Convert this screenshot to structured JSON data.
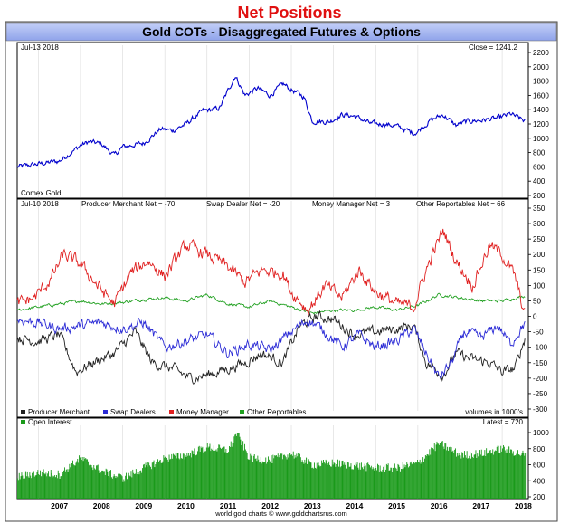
{
  "page_title": "Net Positions",
  "chart_title": "Gold COTs - Disaggregated Futures & Options",
  "footer": "world gold charts © www.goldchartsrus.com",
  "colors": {
    "accent_red": "#e01010",
    "gold": "#0000cc",
    "producer": "#202020",
    "swap": "#2b2bd6",
    "money": "#e02020",
    "other": "#20a020",
    "oi": "#1a9a1a",
    "header_bg": "#a8b8f0"
  },
  "chart_data": [
    {
      "type": "line",
      "name_label": "Comex Gold",
      "date_label": "Jul-13  2018",
      "close_label": "Close = 1241.2",
      "ylim": [
        200,
        2200
      ],
      "yticks": [
        200,
        400,
        600,
        800,
        1000,
        1200,
        1400,
        1600,
        1800,
        2000,
        2200
      ],
      "series": [
        {
          "x": [
            2006.5,
            2007.0,
            2007.5,
            2008.0,
            2008.2,
            2008.5,
            2008.8,
            2009.0,
            2009.5,
            2009.9,
            2010.2,
            2010.5,
            2010.9,
            2011.3,
            2011.67,
            2011.9,
            2012.2,
            2012.5,
            2012.8,
            2013.0,
            2013.3,
            2013.5,
            2013.9,
            2014.2,
            2014.5,
            2014.9,
            2015.2,
            2015.5,
            2015.9,
            2016.0,
            2016.3,
            2016.6,
            2016.9,
            2017.2,
            2017.5,
            2017.9,
            2018.2,
            2018.54
          ],
          "values": [
            600,
            640,
            680,
            900,
            950,
            920,
            760,
            880,
            930,
            1130,
            1110,
            1200,
            1380,
            1420,
            1880,
            1600,
            1700,
            1600,
            1760,
            1680,
            1580,
            1240,
            1230,
            1330,
            1310,
            1200,
            1200,
            1170,
            1070,
            1100,
            1250,
            1330,
            1180,
            1240,
            1250,
            1280,
            1340,
            1241
          ]
        }
      ]
    },
    {
      "type": "line",
      "date_label": "Jul-10  2018",
      "net_labels": [
        "Producer Merchant Net = -70",
        "Swap Dealer Net = -20",
        "Money Manager Net = 3",
        "Other Reportables Net = 66"
      ],
      "ylim": [
        -300,
        350
      ],
      "yticks": [
        -300,
        -250,
        -200,
        -150,
        -100,
        -50,
        0,
        50,
        100,
        150,
        200,
        250,
        300,
        350
      ],
      "units_label": "volumes in 1000's",
      "series": [
        {
          "name": "Producer Merchant",
          "x": [
            2006.5,
            2007.0,
            2007.5,
            2007.9,
            2008.3,
            2008.8,
            2009.3,
            2009.7,
            2010.2,
            2010.6,
            2011.0,
            2011.5,
            2011.9,
            2012.3,
            2012.8,
            2013.2,
            2013.6,
            2014.0,
            2014.5,
            2015.0,
            2015.5,
            2015.9,
            2016.2,
            2016.6,
            2016.9,
            2017.3,
            2017.7,
            2018.0,
            2018.3,
            2018.54
          ],
          "values": [
            -70,
            -80,
            -60,
            -180,
            -150,
            -120,
            -50,
            -150,
            -170,
            -200,
            -190,
            -170,
            -150,
            -120,
            -150,
            -30,
            0,
            -10,
            -60,
            -50,
            -40,
            -30,
            -150,
            -190,
            -120,
            -140,
            -150,
            -180,
            -170,
            -70
          ]
        },
        {
          "name": "Swap Dealers",
          "x": [
            2006.5,
            2007.0,
            2007.5,
            2008.0,
            2008.5,
            2009.0,
            2009.5,
            2010.0,
            2010.5,
            2011.0,
            2011.5,
            2012.0,
            2012.5,
            2013.0,
            2013.4,
            2013.8,
            2014.2,
            2014.6,
            2015.0,
            2015.5,
            2015.9,
            2016.2,
            2016.5,
            2016.8,
            2017.1,
            2017.5,
            2017.9,
            2018.2,
            2018.54
          ],
          "values": [
            -10,
            -20,
            -40,
            -30,
            -20,
            -40,
            -20,
            -100,
            -80,
            -60,
            -120,
            -90,
            -110,
            -50,
            -10,
            -50,
            -100,
            -60,
            -100,
            -80,
            -40,
            -120,
            -200,
            -150,
            -50,
            -70,
            -30,
            -90,
            -20
          ]
        },
        {
          "name": "Money Manager",
          "x": [
            2006.5,
            2006.9,
            2007.3,
            2007.6,
            2008.0,
            2008.4,
            2008.8,
            2009.2,
            2009.6,
            2010.0,
            2010.5,
            2011.0,
            2011.5,
            2011.9,
            2012.3,
            2012.8,
            2013.0,
            2013.4,
            2013.8,
            2014.2,
            2014.6,
            2015.0,
            2015.5,
            2015.9,
            2016.2,
            2016.6,
            2016.9,
            2017.3,
            2017.7,
            2018.0,
            2018.3,
            2018.54
          ],
          "values": [
            40,
            60,
            120,
            200,
            170,
            100,
            40,
            140,
            180,
            130,
            230,
            200,
            160,
            110,
            150,
            140,
            80,
            20,
            100,
            60,
            150,
            80,
            40,
            30,
            150,
            280,
            180,
            100,
            230,
            200,
            130,
            3
          ]
        },
        {
          "name": "Other Reportables",
          "x": [
            2006.5,
            2007.0,
            2007.5,
            2008.0,
            2008.5,
            2009.0,
            2009.5,
            2010.0,
            2010.5,
            2011.0,
            2011.5,
            2012.0,
            2012.5,
            2013.0,
            2013.5,
            2014.0,
            2014.5,
            2015.0,
            2015.5,
            2016.0,
            2016.5,
            2017.0,
            2017.5,
            2018.0,
            2018.54
          ],
          "values": [
            20,
            30,
            40,
            50,
            40,
            45,
            55,
            60,
            50,
            70,
            40,
            30,
            50,
            30,
            10,
            20,
            20,
            30,
            20,
            35,
            70,
            60,
            50,
            50,
            66
          ]
        }
      ]
    },
    {
      "type": "bar",
      "name_label": "Open Interest",
      "latest_label": "Latest = 720",
      "ylim": [
        200,
        1000
      ],
      "yticks": [
        200,
        400,
        600,
        800,
        1000
      ],
      "xticks": [
        "2007",
        "2008",
        "2009",
        "2010",
        "2011",
        "2012",
        "2013",
        "2014",
        "2015",
        "2016",
        "2017",
        "2018"
      ],
      "xlim": [
        2006.5,
        2018.62
      ],
      "series": [
        {
          "name": "Open Interest",
          "x": [
            2006.5,
            2007.0,
            2007.5,
            2008.0,
            2008.5,
            2009.0,
            2009.5,
            2010.0,
            2010.5,
            2011.0,
            2011.5,
            2011.7,
            2012.0,
            2012.5,
            2013.0,
            2013.5,
            2014.0,
            2014.5,
            2015.0,
            2015.5,
            2016.0,
            2016.5,
            2017.0,
            2017.5,
            2018.0,
            2018.54
          ],
          "values": [
            450,
            500,
            480,
            680,
            520,
            430,
            560,
            680,
            720,
            820,
            780,
            1000,
            680,
            660,
            740,
            600,
            620,
            590,
            560,
            560,
            620,
            870,
            720,
            740,
            800,
            720
          ]
        }
      ]
    }
  ]
}
